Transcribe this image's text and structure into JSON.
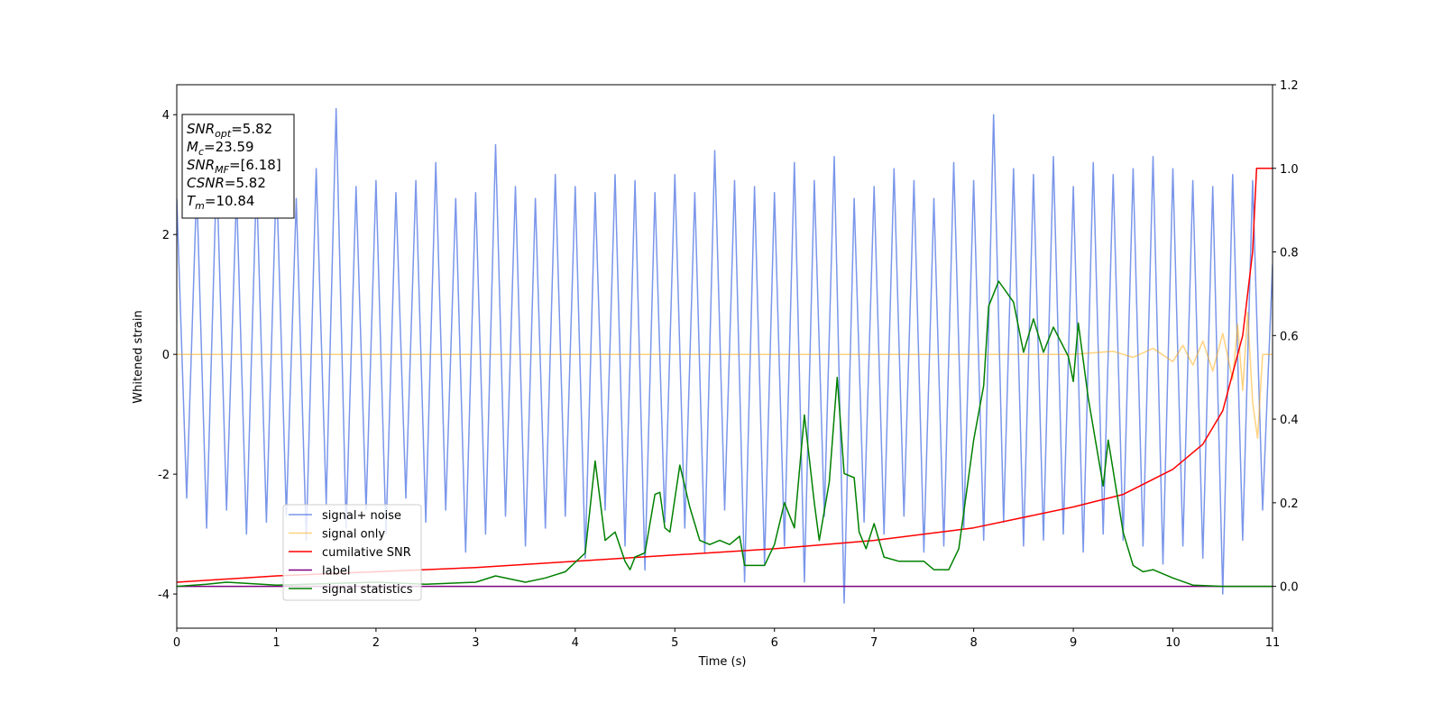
{
  "chart_data": {
    "type": "line",
    "xlabel": "Time (s)",
    "ylabel": "Whitened strain",
    "xlim": [
      0,
      11
    ],
    "xticks": [
      0,
      1,
      2,
      3,
      4,
      5,
      6,
      7,
      8,
      9,
      10,
      11
    ],
    "ylim": [
      -4.57,
      4.5
    ],
    "yticks": [
      -4,
      -2,
      0,
      2,
      4
    ],
    "y2lim": [
      -0.1,
      1.2
    ],
    "y2ticks": [
      {
        "value": 0,
        "label": "0.0"
      },
      0.2,
      0.4,
      0.6,
      0.8,
      {
        "value": 1,
        "label": "1.0"
      },
      1.2
    ],
    "legend": "lower left",
    "annotation": [
      {
        "symbol": "SNR",
        "sub": "opt",
        "text": "=5.82"
      },
      {
        "symbol": "M",
        "sub": "c",
        "text": "=23.59"
      },
      {
        "symbol": "SNR",
        "sub": "MF",
        "text": "=[6.18]"
      },
      {
        "symbol": "CSNR",
        "text": "=5.82"
      },
      {
        "symbol": "T",
        "sub": "m",
        "text": "=10.84"
      }
    ],
    "series": [
      {
        "name": "signal+ noise",
        "color": "#4169e1",
        "alpha": 0.7,
        "x": [
          0,
          0.1,
          0.2,
          0.3,
          0.4,
          0.5,
          0.6,
          0.7,
          0.8,
          0.9,
          1,
          1.1,
          1.2,
          1.3,
          1.4,
          1.5,
          1.6,
          1.7,
          1.8,
          1.9,
          2,
          2.1,
          2.2,
          2.3,
          2.4,
          2.5,
          2.6,
          2.7,
          2.8,
          2.9,
          3,
          3.1,
          3.2,
          3.3,
          3.4,
          3.5,
          3.6,
          3.7,
          3.8,
          3.9,
          4,
          4.1,
          4.2,
          4.3,
          4.4,
          4.5,
          4.6,
          4.7,
          4.8,
          4.9,
          5,
          5.1,
          5.2,
          5.3,
          5.4,
          5.5,
          5.6,
          5.7,
          5.8,
          5.9,
          6,
          6.1,
          6.2,
          6.3,
          6.4,
          6.5,
          6.6,
          6.7,
          6.8,
          6.9,
          7,
          7.1,
          7.2,
          7.3,
          7.4,
          7.5,
          7.6,
          7.7,
          7.8,
          7.9,
          8,
          8.1,
          8.2,
          8.3,
          8.4,
          8.5,
          8.6,
          8.7,
          8.8,
          8.9,
          9,
          9.1,
          9.2,
          9.3,
          9.4,
          9.5,
          9.6,
          9.7,
          9.8,
          9.9,
          10,
          10.1,
          10.2,
          10.3,
          10.4,
          10.5,
          10.6,
          10.7,
          10.8,
          10.9,
          11
        ],
        "values": [
          2.6,
          -2.4,
          2.8,
          -2.9,
          3.1,
          -2.6,
          2.7,
          -3.0,
          2.9,
          -2.8,
          3.0,
          -2.7,
          2.6,
          -3.1,
          3.1,
          -2.5,
          4.1,
          -2.9,
          2.8,
          -2.6,
          2.9,
          -3.0,
          2.7,
          -2.4,
          2.9,
          -2.8,
          3.2,
          -2.6,
          2.6,
          -3.3,
          2.7,
          -3.0,
          3.5,
          -2.7,
          2.8,
          -3.2,
          2.6,
          -2.9,
          3.0,
          -2.7,
          2.8,
          -3.4,
          2.7,
          -2.6,
          3.0,
          -3.2,
          2.9,
          -3.6,
          2.7,
          -2.8,
          3.0,
          -2.9,
          2.7,
          -3.3,
          3.4,
          -2.6,
          2.9,
          -3.8,
          2.8,
          -3.5,
          2.7,
          -3.2,
          3.2,
          -3.8,
          2.9,
          -2.7,
          3.3,
          -4.15,
          2.6,
          -2.8,
          2.8,
          -3.0,
          3.1,
          -2.7,
          2.9,
          -3.3,
          2.6,
          -3.2,
          3.2,
          -2.9,
          2.9,
          -3.1,
          4.0,
          -2.8,
          3.1,
          -3.2,
          3.0,
          -3.1,
          3.3,
          -3.0,
          2.8,
          -3.3,
          3.2,
          -3.0,
          3.0,
          -3.1,
          3.1,
          -3.2,
          3.3,
          -3.5,
          3.1,
          -3.2,
          2.9,
          -3.4,
          2.8,
          -4.0,
          3.0,
          -3.1,
          2.9,
          -2.6,
          1.5
        ]
      },
      {
        "name": "signal only",
        "color": "#ffa500",
        "alpha": 0.5,
        "x": [
          0,
          9,
          9.4,
          9.6,
          9.8,
          10,
          10.1,
          10.2,
          10.3,
          10.4,
          10.5,
          10.6,
          10.65,
          10.7,
          10.75,
          10.8,
          10.85,
          10.9,
          11
        ],
        "values": [
          0,
          0,
          0.05,
          -0.05,
          0.1,
          -0.12,
          0.15,
          -0.18,
          0.22,
          -0.28,
          0.35,
          -0.42,
          0.5,
          -0.6,
          0.7,
          -0.8,
          -1.4,
          0,
          0
        ]
      },
      {
        "name": "cumilative SNR",
        "color": "#ff0000",
        "axis": "y2",
        "alpha": 1,
        "x": [
          0,
          1,
          2,
          3,
          4,
          5,
          6,
          7,
          8,
          9,
          9.5,
          10,
          10.3,
          10.5,
          10.7,
          10.8,
          10.84,
          11
        ],
        "values": [
          0.01,
          0.025,
          0.035,
          0.045,
          0.06,
          0.075,
          0.09,
          0.11,
          0.14,
          0.19,
          0.22,
          0.28,
          0.34,
          0.42,
          0.6,
          0.8,
          1.0,
          1.0
        ]
      },
      {
        "name": "label",
        "color": "#800080",
        "axis": "y2",
        "alpha": 1,
        "x": [
          0,
          11
        ],
        "values": [
          0,
          0
        ]
      },
      {
        "name": "signal statistics",
        "color": "#008000",
        "axis": "y2",
        "alpha": 1,
        "x": [
          0,
          0.3,
          0.5,
          1,
          2,
          2.5,
          3,
          3.2,
          3.5,
          3.7,
          3.9,
          4.1,
          4.2,
          4.3,
          4.4,
          4.5,
          4.55,
          4.6,
          4.7,
          4.8,
          4.85,
          4.9,
          4.95,
          5.05,
          5.15,
          5.25,
          5.35,
          5.45,
          5.55,
          5.65,
          5.7,
          5.8,
          5.9,
          6,
          6.1,
          6.2,
          6.3,
          6.4,
          6.45,
          6.55,
          6.63,
          6.7,
          6.8,
          6.85,
          6.92,
          7,
          7.1,
          7.25,
          7.5,
          7.6,
          7.75,
          7.85,
          8,
          8.1,
          8.15,
          8.25,
          8.4,
          8.5,
          8.6,
          8.7,
          8.8,
          8.95,
          9,
          9.05,
          9.15,
          9.3,
          9.35,
          9.5,
          9.6,
          9.7,
          9.8,
          10,
          10.2,
          10.5,
          11
        ],
        "values": [
          0,
          0.005,
          0.01,
          0.003,
          0.01,
          0.005,
          0.01,
          0.025,
          0.01,
          0.02,
          0.035,
          0.08,
          0.3,
          0.11,
          0.13,
          0.06,
          0.04,
          0.07,
          0.08,
          0.22,
          0.225,
          0.14,
          0.13,
          0.29,
          0.19,
          0.11,
          0.1,
          0.11,
          0.1,
          0.12,
          0.05,
          0.05,
          0.05,
          0.1,
          0.2,
          0.14,
          0.41,
          0.2,
          0.11,
          0.25,
          0.5,
          0.27,
          0.26,
          0.13,
          0.09,
          0.15,
          0.07,
          0.06,
          0.06,
          0.04,
          0.04,
          0.09,
          0.35,
          0.48,
          0.67,
          0.73,
          0.68,
          0.56,
          0.64,
          0.56,
          0.62,
          0.55,
          0.49,
          0.63,
          0.45,
          0.24,
          0.35,
          0.13,
          0.05,
          0.035,
          0.04,
          0.02,
          0.003,
          0,
          0
        ]
      }
    ]
  }
}
